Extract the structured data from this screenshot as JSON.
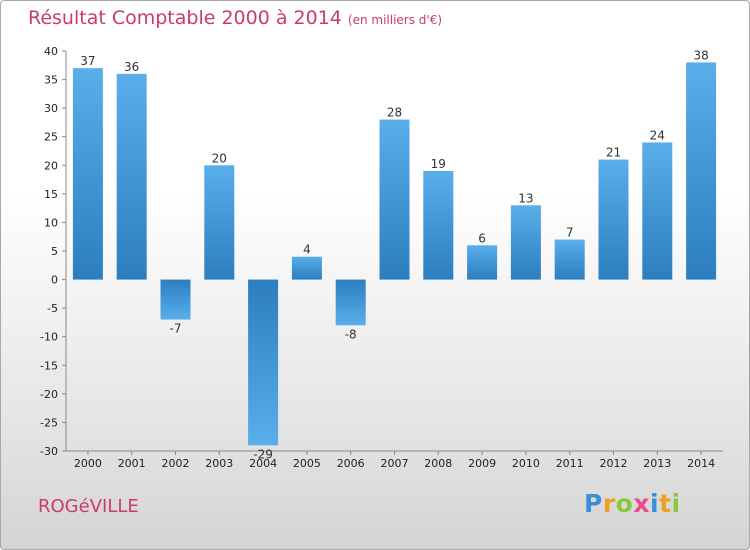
{
  "chart_data": {
    "type": "bar",
    "title": "Résultat Comptable 2000 à 2014",
    "subtitle": "(en milliers d'€)",
    "categories": [
      "2000",
      "2001",
      "2002",
      "2003",
      "2004",
      "2005",
      "2006",
      "2007",
      "2008",
      "2009",
      "2010",
      "2011",
      "2012",
      "2013",
      "2014"
    ],
    "values": [
      37,
      36,
      -7,
      20,
      -29,
      4,
      -8,
      28,
      19,
      6,
      13,
      7,
      21,
      24,
      38
    ],
    "ylim": [
      -30,
      40
    ],
    "yticks": [
      40,
      35,
      30,
      25,
      20,
      15,
      10,
      5,
      0,
      -5,
      -10,
      -15,
      -20,
      -25,
      -30
    ],
    "xlabel": "",
    "ylabel": "",
    "grid": false,
    "bar_color_top": "#5aaeea",
    "bar_color_bottom": "#2c7ebf"
  },
  "commune": "ROGéVILLE",
  "brand": {
    "letters": [
      "P",
      "r",
      "o",
      "x",
      "i",
      "t",
      "i"
    ],
    "colors": [
      "#3a8fd8",
      "#f0a020",
      "#8cc63f",
      "#e84a8a",
      "#3a8fd8",
      "#f0a020",
      "#8cc63f"
    ]
  },
  "colors": {
    "accent": "#cc3a6e"
  }
}
